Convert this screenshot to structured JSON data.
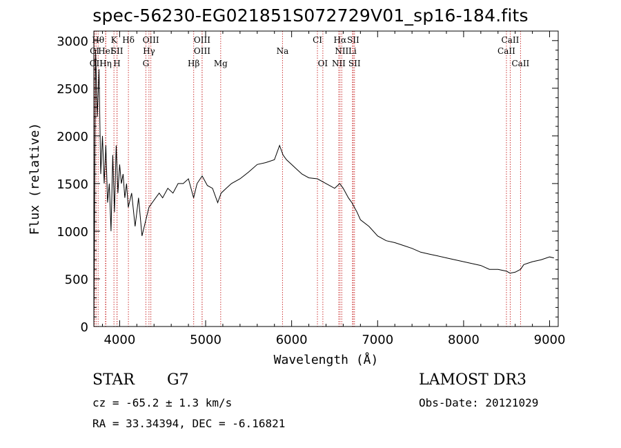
{
  "title": "spec-56230-EG021851S072729V01_sp16-184.fits",
  "chart_data": {
    "type": "line",
    "xlabel": "Wavelength (Å)",
    "ylabel": "Flux (relative)",
    "xlim": [
      3700,
      9100
    ],
    "ylim": [
      0,
      3100
    ],
    "xticks": [
      4000,
      5000,
      6000,
      7000,
      8000,
      9000
    ],
    "yticks": [
      0,
      500,
      1000,
      1500,
      2000,
      2500,
      3000
    ],
    "series": [
      {
        "name": "spectrum",
        "x": [
          3700,
          3720,
          3740,
          3760,
          3780,
          3800,
          3820,
          3840,
          3860,
          3880,
          3900,
          3920,
          3940,
          3960,
          3980,
          4000,
          4020,
          4040,
          4060,
          4080,
          4100,
          4140,
          4180,
          4220,
          4260,
          4300,
          4340,
          4380,
          4420,
          4460,
          4500,
          4560,
          4620,
          4680,
          4740,
          4800,
          4860,
          4900,
          4960,
          5020,
          5080,
          5140,
          5180,
          5240,
          5300,
          5400,
          5500,
          5600,
          5700,
          5800,
          5860,
          5900,
          5940,
          6000,
          6060,
          6120,
          6200,
          6300,
          6400,
          6500,
          6560,
          6600,
          6660,
          6700,
          6760,
          6800,
          6900,
          7000,
          7100,
          7200,
          7300,
          7400,
          7500,
          7600,
          7700,
          7800,
          7900,
          8000,
          8100,
          8200,
          8300,
          8400,
          8500,
          8540,
          8600,
          8662,
          8700,
          8800,
          8900,
          9000,
          9050
        ],
        "y": [
          0,
          2900,
          2200,
          2700,
          1600,
          2000,
          1500,
          1900,
          1300,
          1500,
          1000,
          1800,
          1200,
          1900,
          1400,
          1700,
          1500,
          1600,
          1350,
          1500,
          1250,
          1400,
          1050,
          1350,
          950,
          1100,
          1250,
          1300,
          1350,
          1400,
          1350,
          1450,
          1400,
          1500,
          1500,
          1550,
          1350,
          1500,
          1580,
          1480,
          1450,
          1300,
          1400,
          1450,
          1500,
          1550,
          1620,
          1700,
          1720,
          1750,
          1900,
          1800,
          1750,
          1700,
          1650,
          1600,
          1560,
          1550,
          1500,
          1450,
          1500,
          1450,
          1350,
          1300,
          1200,
          1120,
          1050,
          950,
          900,
          880,
          850,
          820,
          780,
          760,
          740,
          720,
          700,
          680,
          660,
          640,
          600,
          600,
          580,
          560,
          570,
          600,
          650,
          680,
          700,
          730,
          720
        ]
      }
    ],
    "annotations": [
      {
        "label": "OII",
        "wavelength": 3727,
        "row": 3
      },
      {
        "label": "Hθ",
        "wavelength": 3750,
        "row": 1
      },
      {
        "label": "CI",
        "wavelength": 3709,
        "row": 2
      },
      {
        "label": "Hη",
        "wavelength": 3836,
        "row": 3
      },
      {
        "label": "HeI",
        "wavelength": 3840,
        "row": 2
      },
      {
        "label": "K",
        "wavelength": 3934,
        "row": 1
      },
      {
        "label": "SII",
        "wavelength": 3970,
        "row": 2
      },
      {
        "label": "H",
        "wavelength": 3969,
        "row": 3
      },
      {
        "label": "Hδ",
        "wavelength": 4102,
        "row": 1
      },
      {
        "label": "OIII",
        "wavelength": 4363,
        "row": 1
      },
      {
        "label": "Hγ",
        "wavelength": 4341,
        "row": 2
      },
      {
        "label": "G",
        "wavelength": 4305,
        "row": 3
      },
      {
        "label": "OIII",
        "wavelength": 4959,
        "row": 1
      },
      {
        "label": "OIII",
        "wavelength": 4959,
        "row": 2
      },
      {
        "label": "Hβ",
        "wavelength": 4861,
        "row": 3
      },
      {
        "label": "Mg",
        "wavelength": 5175,
        "row": 3
      },
      {
        "label": "Na",
        "wavelength": 5894,
        "row": 2
      },
      {
        "label": "CI",
        "wavelength": 6300,
        "row": 1
      },
      {
        "label": "OI",
        "wavelength": 6363,
        "row": 3
      },
      {
        "label": "Hα",
        "wavelength": 6563,
        "row": 1
      },
      {
        "label": "SII",
        "wavelength": 6716,
        "row": 1
      },
      {
        "label": "NII",
        "wavelength": 6583,
        "row": 2
      },
      {
        "label": "Li",
        "wavelength": 6708,
        "row": 2
      },
      {
        "label": "NII",
        "wavelength": 6548,
        "row": 3
      },
      {
        "label": "SII",
        "wavelength": 6731,
        "row": 3
      },
      {
        "label": "CaII",
        "wavelength": 8542,
        "row": 1
      },
      {
        "label": "CaII",
        "wavelength": 8498,
        "row": 2
      },
      {
        "label": "CaII",
        "wavelength": 8662,
        "row": 3
      }
    ]
  },
  "info": {
    "object_class": "STAR",
    "subclass": "G7",
    "survey": "LAMOST DR3",
    "redshift": "cz = -65.2 ± 1.3 km/s",
    "obs_date": "Obs-Date: 20121029",
    "coords": "RA =  33.34394, DEC =  -6.16821"
  }
}
